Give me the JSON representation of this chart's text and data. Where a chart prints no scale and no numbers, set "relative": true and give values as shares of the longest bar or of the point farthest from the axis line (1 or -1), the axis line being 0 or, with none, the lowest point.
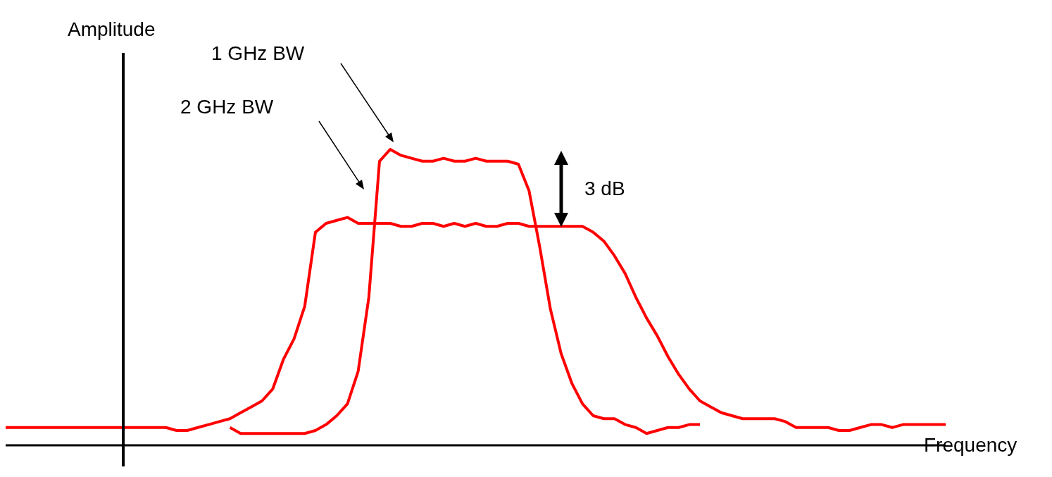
{
  "chart_data": {
    "type": "line",
    "relative": true,
    "xlabel": "Frequency",
    "legend": false,
    "grid": false,
    "marker": "none",
    "line_style": "solid",
    "categories": [
      null,
      null,
      null,
      null,
      null,
      null,
      null,
      null,
      null,
      null,
      null,
      null,
      null,
      null,
      null,
      null,
      null,
      null,
      null,
      null,
      null,
      null,
      null,
      null,
      null,
      null,
      null,
      null,
      null,
      null,
      null,
      null,
      null,
      null,
      null,
      null,
      null,
      null,
      null,
      null,
      null,
      null,
      null,
      null,
      null,
      null,
      null,
      null,
      null,
      null,
      null,
      null,
      null,
      null,
      null,
      null,
      null,
      null,
      null,
      null,
      null,
      null,
      null,
      null,
      null,
      null,
      null,
      null,
      null,
      null,
      null,
      null,
      null,
      null,
      null,
      null,
      null,
      null,
      null,
      null,
      null,
      null,
      null,
      null,
      null,
      null,
      null,
      null,
      null
    ],
    "series": [
      {
        "color": "#ff0000",
        "values": [
          0.06,
          0.06,
          0.06,
          0.06,
          0.06,
          0.06,
          0.06,
          0.06,
          0.06,
          0.06,
          0.06,
          0.06,
          0.06,
          0.06,
          0.06,
          0.06,
          0.05,
          0.05,
          0.06,
          0.07,
          0.08,
          0.09,
          0.11,
          0.13,
          0.15,
          0.19,
          0.29,
          0.36,
          0.47,
          0.72,
          0.75,
          0.76,
          0.77,
          0.75,
          0.75,
          0.75,
          0.75,
          0.74,
          0.74,
          0.75,
          0.75,
          0.74,
          0.75,
          0.74,
          0.75,
          0.74,
          0.74,
          0.75,
          0.75,
          0.74,
          0.74,
          0.74,
          0.74,
          0.74,
          0.74,
          0.72,
          0.69,
          0.64,
          0.58,
          0.5,
          0.43,
          0.37,
          0.3,
          0.24,
          0.19,
          0.15,
          0.13,
          0.11,
          0.1,
          0.09,
          0.09,
          0.09,
          0.09,
          0.08,
          0.06,
          0.06,
          0.06,
          0.06,
          0.05,
          0.05,
          0.06,
          0.07,
          0.07,
          0.06,
          0.07,
          0.07,
          0.07,
          0.07,
          0.07
        ]
      },
      {
        "color": "#ff0000",
        "values": [
          null,
          null,
          null,
          null,
          null,
          null,
          null,
          null,
          null,
          null,
          null,
          null,
          null,
          null,
          null,
          null,
          null,
          null,
          null,
          null,
          null,
          0.06,
          0.04,
          0.04,
          0.04,
          0.04,
          0.04,
          0.04,
          0.04,
          0.05,
          0.07,
          0.1,
          0.14,
          0.25,
          0.5,
          0.96,
          1.0,
          0.98,
          0.97,
          0.96,
          0.96,
          0.97,
          0.96,
          0.96,
          0.97,
          0.96,
          0.96,
          0.96,
          0.95,
          0.86,
          0.67,
          0.46,
          0.31,
          0.21,
          0.14,
          0.1,
          0.09,
          0.09,
          0.07,
          0.06,
          0.04,
          0.05,
          0.06,
          0.06,
          0.07,
          0.07,
          null,
          null,
          null,
          null,
          null,
          null,
          null,
          null,
          null,
          null,
          null,
          null,
          null,
          null,
          null,
          null,
          null,
          null,
          null,
          null,
          null,
          null,
          null
        ]
      }
    ],
    "annotations": [
      "Amplitude",
      "1 GHz BW",
      "2 GHz BW",
      "3 dB"
    ]
  }
}
